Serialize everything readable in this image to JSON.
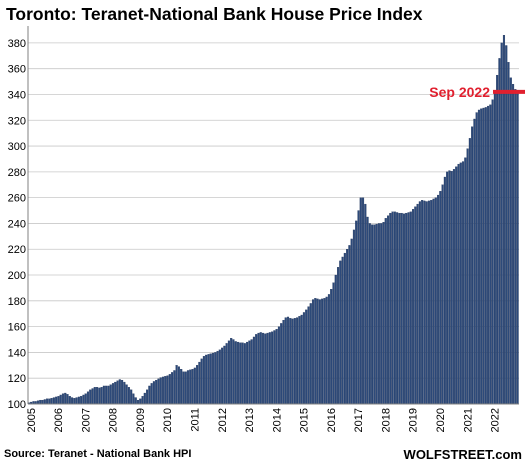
{
  "title": "Toronto: Teranet-National Bank House Price Index",
  "source": "Source: Teranet - National Bank HPI",
  "brand": "WOLFSTREET.com",
  "chart_data": {
    "type": "bar",
    "title": "Toronto: Teranet-National Bank House Price Index",
    "xlabel": "",
    "ylabel": "",
    "ylim": [
      100,
      390
    ],
    "yticks": [
      100,
      120,
      140,
      160,
      180,
      200,
      220,
      240,
      260,
      280,
      300,
      320,
      340,
      360,
      380
    ],
    "xticks": [
      "2005",
      "2006",
      "2007",
      "2008",
      "2009",
      "2010",
      "2011",
      "2012",
      "2013",
      "2014",
      "2015",
      "2016",
      "2017",
      "2018",
      "2019",
      "2020",
      "2021",
      "2022"
    ],
    "grid": "horizontal",
    "bar_color": "#2d4a7a",
    "start_month": "2005-01",
    "annotation": {
      "label": "Sep 2022",
      "value": 342,
      "color": "#e0202f"
    },
    "monthly_values": [
      101,
      101.5,
      102,
      102,
      102.5,
      103,
      103,
      103.5,
      104,
      104,
      104.5,
      105,
      105.5,
      106,
      107,
      108,
      108.5,
      107.5,
      106,
      105,
      104.5,
      105,
      105.5,
      106,
      107,
      108,
      109.5,
      111,
      112,
      113,
      113,
      112.5,
      113,
      114,
      114,
      114,
      115,
      116,
      117,
      118,
      119,
      118.5,
      117,
      115,
      113,
      111,
      108,
      105,
      103,
      104,
      106,
      108.5,
      111,
      114,
      116,
      117.5,
      118.5,
      119.5,
      120.5,
      121,
      121.5,
      122,
      123,
      124.5,
      126,
      130,
      129,
      127,
      125,
      125,
      126,
      126.5,
      127,
      128,
      130,
      132.5,
      135,
      137,
      138,
      138.5,
      139,
      139.5,
      140,
      141,
      142,
      143.5,
      145,
      147,
      149,
      151,
      150,
      148.5,
      148,
      147.5,
      147.5,
      147,
      148,
      149,
      150,
      152,
      154,
      155,
      155.5,
      155,
      154.5,
      155,
      155.5,
      156,
      157,
      158,
      160,
      162.5,
      165,
      167,
      167.5,
      166.5,
      166,
      166.5,
      167,
      168,
      169,
      171,
      173,
      175.5,
      178,
      181,
      182,
      181.5,
      181,
      181.5,
      182,
      183,
      185,
      189,
      194,
      200,
      206,
      211,
      214,
      217,
      220,
      223,
      228,
      235,
      242,
      250,
      260,
      260,
      255,
      245,
      240,
      239,
      239,
      239.5,
      240,
      240,
      241,
      244,
      246,
      248,
      249,
      249,
      248.5,
      248,
      248,
      247.5,
      248,
      248.5,
      249,
      251,
      253,
      255,
      257,
      258,
      257.5,
      257,
      257.5,
      258,
      259,
      260,
      262,
      265,
      270,
      276,
      280,
      281,
      280.5,
      282,
      284,
      286,
      287,
      288,
      291,
      298,
      306,
      315,
      321,
      326,
      328,
      329,
      329.5,
      330,
      331,
      332,
      336,
      343,
      355,
      368,
      380,
      386,
      378,
      365,
      353,
      348,
      344,
      342
    ]
  }
}
